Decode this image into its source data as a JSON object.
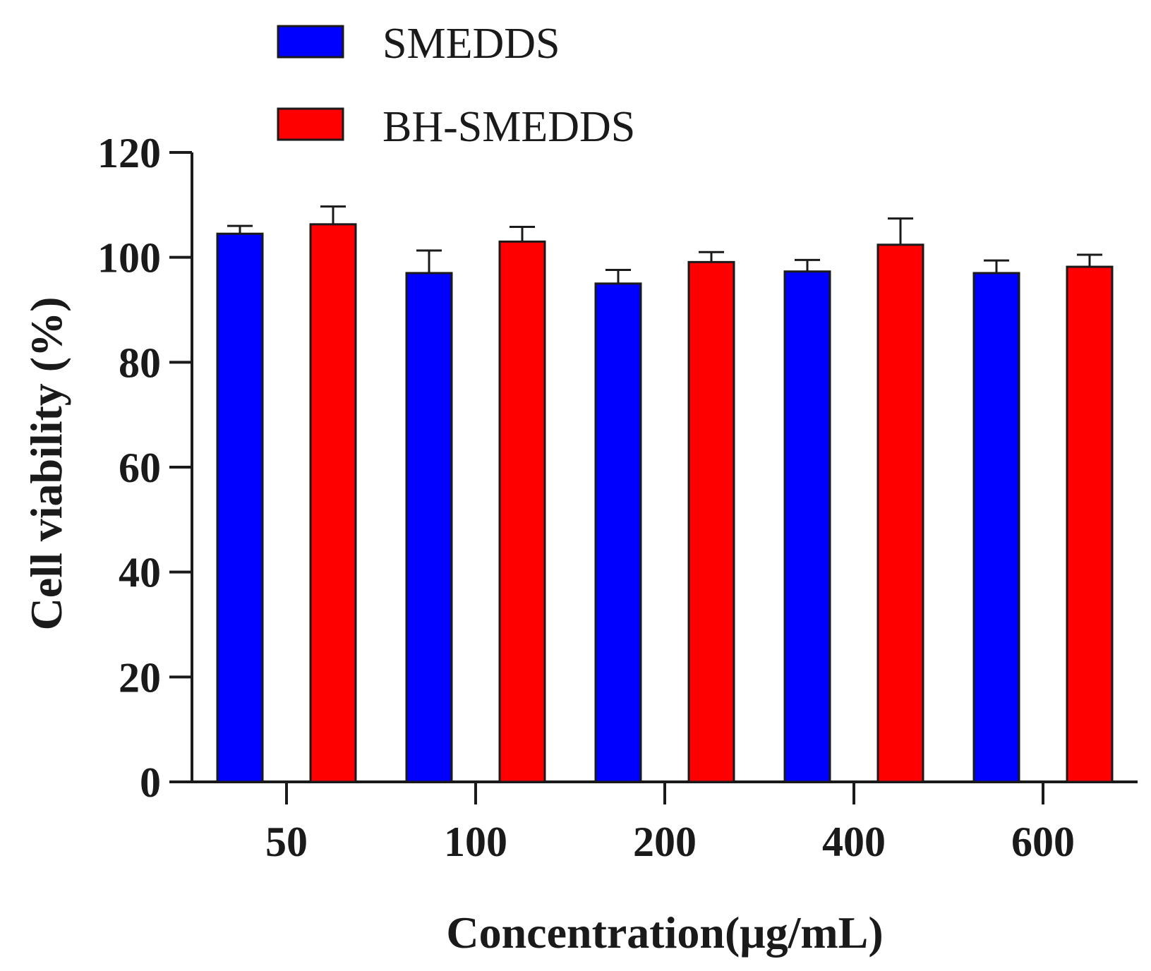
{
  "chart_data": {
    "type": "bar",
    "title": "",
    "xlabel": "Concentration(μg/mL)",
    "ylabel": "Cell viability (%)",
    "categories": [
      "50",
      "100",
      "200",
      "400",
      "600"
    ],
    "ylim": [
      0,
      120
    ],
    "yticks": [
      "0",
      "20",
      "40",
      "60",
      "80",
      "100",
      "120"
    ],
    "grid": false,
    "legend_position": "top-left",
    "series": [
      {
        "name": "SMEDDS",
        "color": "#0000ff",
        "values": [
          104.5,
          97.0,
          95.0,
          97.3,
          97.0
        ],
        "errors": [
          1.5,
          4.3,
          2.6,
          2.2,
          2.4
        ]
      },
      {
        "name": "BH-SMEDDS",
        "color": "#ff0000",
        "values": [
          106.3,
          103.0,
          99.1,
          102.4,
          98.2
        ],
        "errors": [
          3.4,
          2.8,
          1.9,
          5.0,
          2.3
        ]
      }
    ]
  }
}
